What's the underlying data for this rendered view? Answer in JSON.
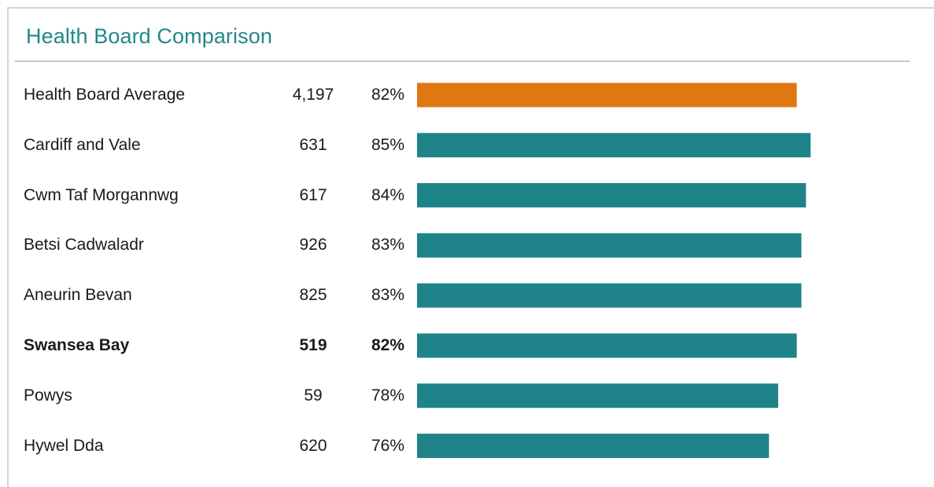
{
  "chart_data": {
    "type": "bar",
    "orientation": "horizontal",
    "title": "Health Board Comparison",
    "categories": [
      "Health Board Average",
      "Cardiff and Vale",
      "Cwm Taf Morgannwg",
      "Betsi Cadwaladr",
      "Aneurin Bevan",
      "Swansea Bay",
      "Powys",
      "Hywel Dda"
    ],
    "counts": [
      "4,197",
      "631",
      "617",
      "926",
      "825",
      "519",
      "59",
      "620"
    ],
    "percent_labels": [
      "82%",
      "85%",
      "84%",
      "83%",
      "83%",
      "82%",
      "78%",
      "76%"
    ],
    "values": [
      82,
      85,
      84,
      83,
      83,
      82,
      78,
      76
    ],
    "highlighted": "Swansea Bay",
    "grid": false,
    "legend": "none"
  },
  "colors": {
    "title": "#22878a",
    "average_bar": "#e07812",
    "bar": "#1f838a"
  }
}
